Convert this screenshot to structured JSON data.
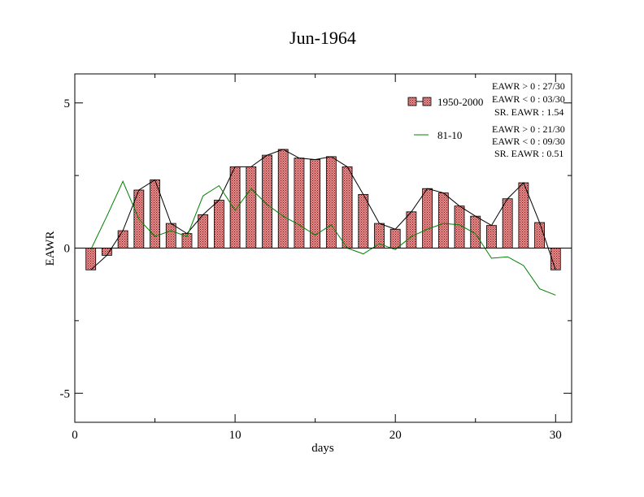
{
  "chart_data": {
    "type": "bar",
    "title": "Jun-1964",
    "xlabel": "days",
    "ylabel": "EAWR",
    "xlim": [
      0,
      31
    ],
    "ylim": [
      -6,
      6
    ],
    "xticks": [
      0,
      10,
      20,
      30
    ],
    "xtick_labels": [
      "0",
      "10",
      "20",
      "30"
    ],
    "yticks": [
      -5,
      0,
      5
    ],
    "ytick_labels": [
      "-5",
      "0",
      "5"
    ],
    "grid": false,
    "legend_position": "top-right",
    "x": [
      1,
      2,
      3,
      4,
      5,
      6,
      7,
      8,
      9,
      10,
      11,
      12,
      13,
      14,
      15,
      16,
      17,
      18,
      19,
      20,
      21,
      22,
      23,
      24,
      25,
      26,
      27,
      28,
      29,
      30
    ],
    "series": [
      {
        "name": "1950-2000",
        "kind": "bar+line",
        "color": "#e87878",
        "hatch": true,
        "values": [
          -0.75,
          -0.25,
          0.6,
          2.0,
          2.35,
          0.85,
          0.5,
          1.15,
          1.65,
          2.8,
          2.8,
          3.2,
          3.4,
          3.1,
          3.05,
          3.15,
          2.8,
          1.85,
          0.85,
          0.65,
          1.25,
          2.05,
          1.9,
          1.45,
          1.1,
          0.78,
          1.7,
          2.25,
          0.88,
          -0.75
        ]
      },
      {
        "name": "81-10",
        "kind": "line",
        "color": "#008000",
        "values": [
          -0.05,
          1.1,
          2.3,
          1.0,
          0.4,
          0.6,
          0.4,
          1.8,
          2.15,
          1.3,
          2.05,
          1.5,
          1.1,
          0.8,
          0.45,
          0.8,
          0.0,
          -0.2,
          0.15,
          -0.05,
          0.4,
          0.65,
          0.85,
          0.8,
          0.5,
          -0.35,
          -0.3,
          -0.6,
          -1.4,
          -1.62
        ]
      }
    ],
    "annotations": {
      "block1": [
        "EAWR > 0 : 27/30",
        "EAWR < 0 : 03/30",
        "SR. EAWR :  1.54"
      ],
      "block2": [
        "EAWR > 0 : 21/30",
        "EAWR < 0 : 09/30",
        "SR. EAWR :  0.51"
      ]
    }
  }
}
